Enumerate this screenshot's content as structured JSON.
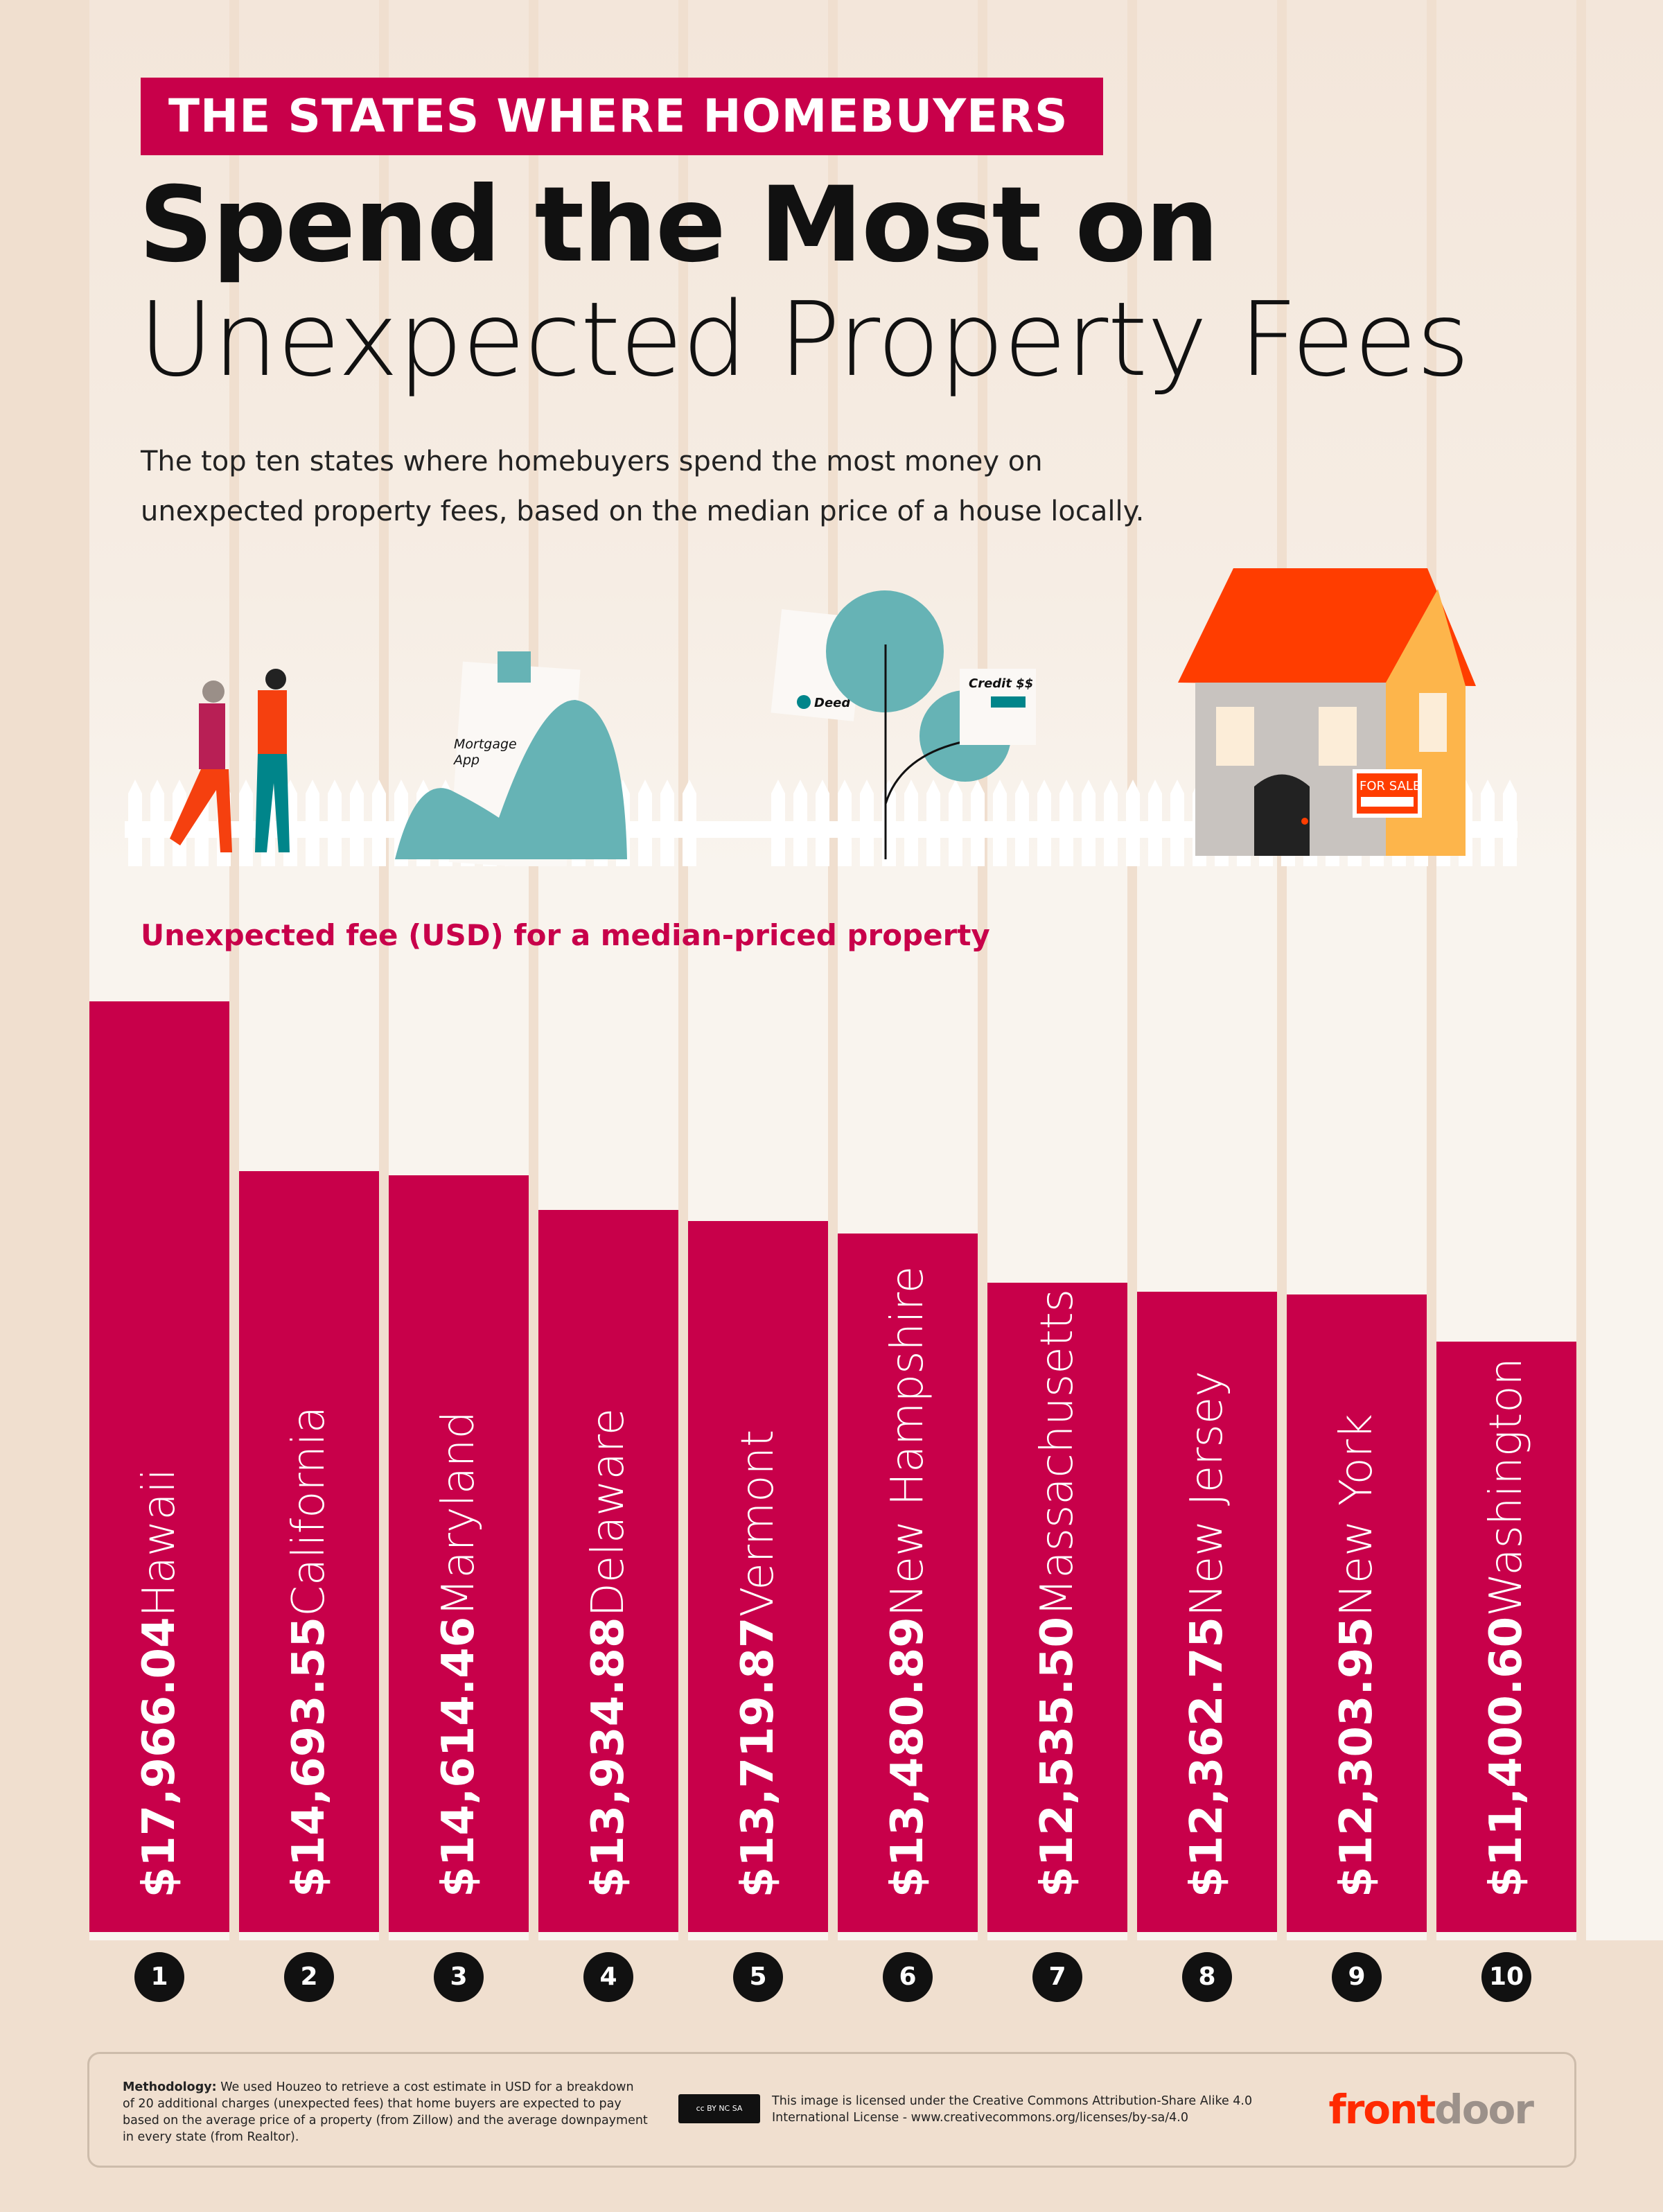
{
  "header": {
    "banner": "THE STATES WHERE HOMEBUYERS",
    "title_bold": "Spend the Most on",
    "title_light": "Unexpected Property Fees",
    "subtitle_line1": "The top ten states where homebuyers spend the most money on",
    "subtitle_line2": "unexpected property fees, based on the median price of a house locally."
  },
  "illustration": {
    "mortgage_label_1": "Mortgage",
    "mortgage_label_2": "App",
    "deed_label": "Deed",
    "credit_label": "Credit $$",
    "for_sale_label": "FOR SALE"
  },
  "colors": {
    "accent": "#c8004a",
    "background": "#f0dfcf",
    "column": "#f9f4ee",
    "teal": "#66b3b5",
    "roof": "#ff3d00"
  },
  "chart_data": {
    "type": "bar",
    "orientation": "vertical",
    "ylabel": "Unexpected fee (USD) for a median-priced property",
    "categories": [
      "Hawaii",
      "California",
      "Maryland",
      "Delaware",
      "Vermont",
      "New Hampshire",
      "Massachusetts",
      "New Jersey",
      "New York",
      "Washington"
    ],
    "values": [
      17966.04,
      14693.55,
      14614.46,
      13934.88,
      13719.87,
      13480.89,
      12535.5,
      12362.75,
      12303.95,
      11400.6
    ],
    "labels": [
      "$17,966.04",
      "$14,693.55",
      "$14,614.46",
      "$13,934.88",
      "$13,719.87",
      "$13,480.89",
      "$12,535.50",
      "$12,362.75",
      "$12,303.95",
      "$11,400.60"
    ],
    "ranks": [
      "1",
      "2",
      "3",
      "4",
      "5",
      "6",
      "7",
      "8",
      "9",
      "10"
    ],
    "ylim": [
      0,
      17966.04
    ],
    "grid": false,
    "legend": "none"
  },
  "footer": {
    "methodology_label": "Methodology:",
    "methodology_text": " We used Houzeo to retrieve a cost estimate in USD for a breakdown of 20 additional charges (unexpected fees) that home buyers are expected to pay based on the average price of a property (from Zillow) and the average downpayment in every state (from Realtor).",
    "cc_badge": "cc BY NC SA",
    "license_text": "This image is licensed under the Creative Commons Attribution-Share Alike 4.0 International License - www.creativecommons.org/licenses/by-sa/4.0",
    "logo_front": "front",
    "logo_door": "door"
  }
}
